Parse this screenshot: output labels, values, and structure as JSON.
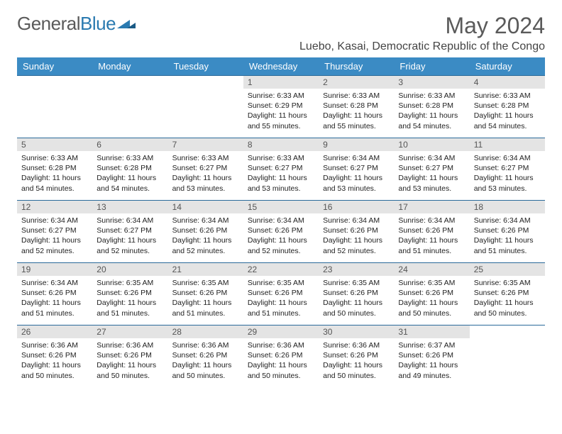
{
  "brand": {
    "part1": "General",
    "part2": "Blue"
  },
  "title": "May 2024",
  "location": "Luebo, Kasai, Democratic Republic of the Congo",
  "colors": {
    "header_bg": "#3b8bc4",
    "header_text": "#ffffff",
    "daynum_bg": "#e4e4e4",
    "daynum_text": "#555555",
    "border": "#2a6a9a",
    "title_text": "#5a5a5a",
    "body_text": "#222222"
  },
  "weekdays": [
    "Sunday",
    "Monday",
    "Tuesday",
    "Wednesday",
    "Thursday",
    "Friday",
    "Saturday"
  ],
  "grid": [
    [
      null,
      null,
      null,
      {
        "n": "1",
        "sunrise": "6:33 AM",
        "sunset": "6:29 PM",
        "daylight": "11 hours and 55 minutes."
      },
      {
        "n": "2",
        "sunrise": "6:33 AM",
        "sunset": "6:28 PM",
        "daylight": "11 hours and 55 minutes."
      },
      {
        "n": "3",
        "sunrise": "6:33 AM",
        "sunset": "6:28 PM",
        "daylight": "11 hours and 54 minutes."
      },
      {
        "n": "4",
        "sunrise": "6:33 AM",
        "sunset": "6:28 PM",
        "daylight": "11 hours and 54 minutes."
      }
    ],
    [
      {
        "n": "5",
        "sunrise": "6:33 AM",
        "sunset": "6:28 PM",
        "daylight": "11 hours and 54 minutes."
      },
      {
        "n": "6",
        "sunrise": "6:33 AM",
        "sunset": "6:28 PM",
        "daylight": "11 hours and 54 minutes."
      },
      {
        "n": "7",
        "sunrise": "6:33 AM",
        "sunset": "6:27 PM",
        "daylight": "11 hours and 53 minutes."
      },
      {
        "n": "8",
        "sunrise": "6:33 AM",
        "sunset": "6:27 PM",
        "daylight": "11 hours and 53 minutes."
      },
      {
        "n": "9",
        "sunrise": "6:34 AM",
        "sunset": "6:27 PM",
        "daylight": "11 hours and 53 minutes."
      },
      {
        "n": "10",
        "sunrise": "6:34 AM",
        "sunset": "6:27 PM",
        "daylight": "11 hours and 53 minutes."
      },
      {
        "n": "11",
        "sunrise": "6:34 AM",
        "sunset": "6:27 PM",
        "daylight": "11 hours and 53 minutes."
      }
    ],
    [
      {
        "n": "12",
        "sunrise": "6:34 AM",
        "sunset": "6:27 PM",
        "daylight": "11 hours and 52 minutes."
      },
      {
        "n": "13",
        "sunrise": "6:34 AM",
        "sunset": "6:27 PM",
        "daylight": "11 hours and 52 minutes."
      },
      {
        "n": "14",
        "sunrise": "6:34 AM",
        "sunset": "6:26 PM",
        "daylight": "11 hours and 52 minutes."
      },
      {
        "n": "15",
        "sunrise": "6:34 AM",
        "sunset": "6:26 PM",
        "daylight": "11 hours and 52 minutes."
      },
      {
        "n": "16",
        "sunrise": "6:34 AM",
        "sunset": "6:26 PM",
        "daylight": "11 hours and 52 minutes."
      },
      {
        "n": "17",
        "sunrise": "6:34 AM",
        "sunset": "6:26 PM",
        "daylight": "11 hours and 51 minutes."
      },
      {
        "n": "18",
        "sunrise": "6:34 AM",
        "sunset": "6:26 PM",
        "daylight": "11 hours and 51 minutes."
      }
    ],
    [
      {
        "n": "19",
        "sunrise": "6:34 AM",
        "sunset": "6:26 PM",
        "daylight": "11 hours and 51 minutes."
      },
      {
        "n": "20",
        "sunrise": "6:35 AM",
        "sunset": "6:26 PM",
        "daylight": "11 hours and 51 minutes."
      },
      {
        "n": "21",
        "sunrise": "6:35 AM",
        "sunset": "6:26 PM",
        "daylight": "11 hours and 51 minutes."
      },
      {
        "n": "22",
        "sunrise": "6:35 AM",
        "sunset": "6:26 PM",
        "daylight": "11 hours and 51 minutes."
      },
      {
        "n": "23",
        "sunrise": "6:35 AM",
        "sunset": "6:26 PM",
        "daylight": "11 hours and 50 minutes."
      },
      {
        "n": "24",
        "sunrise": "6:35 AM",
        "sunset": "6:26 PM",
        "daylight": "11 hours and 50 minutes."
      },
      {
        "n": "25",
        "sunrise": "6:35 AM",
        "sunset": "6:26 PM",
        "daylight": "11 hours and 50 minutes."
      }
    ],
    [
      {
        "n": "26",
        "sunrise": "6:36 AM",
        "sunset": "6:26 PM",
        "daylight": "11 hours and 50 minutes."
      },
      {
        "n": "27",
        "sunrise": "6:36 AM",
        "sunset": "6:26 PM",
        "daylight": "11 hours and 50 minutes."
      },
      {
        "n": "28",
        "sunrise": "6:36 AM",
        "sunset": "6:26 PM",
        "daylight": "11 hours and 50 minutes."
      },
      {
        "n": "29",
        "sunrise": "6:36 AM",
        "sunset": "6:26 PM",
        "daylight": "11 hours and 50 minutes."
      },
      {
        "n": "30",
        "sunrise": "6:36 AM",
        "sunset": "6:26 PM",
        "daylight": "11 hours and 50 minutes."
      },
      {
        "n": "31",
        "sunrise": "6:37 AM",
        "sunset": "6:26 PM",
        "daylight": "11 hours and 49 minutes."
      },
      null
    ]
  ],
  "labels": {
    "sunrise": "Sunrise:",
    "sunset": "Sunset:",
    "daylight": "Daylight:"
  }
}
